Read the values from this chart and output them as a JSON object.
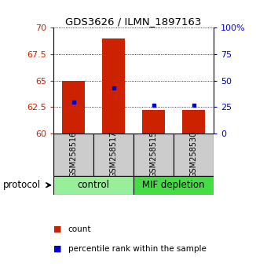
{
  "title": "GDS3626 / ILMN_1897163",
  "samples": [
    "GSM258516",
    "GSM258517",
    "GSM258515",
    "GSM258530"
  ],
  "bar_bottoms": [
    60,
    60,
    60,
    60
  ],
  "bar_tops": [
    65.0,
    69.0,
    62.2,
    62.2
  ],
  "percentile_vals": [
    30,
    43,
    27,
    27
  ],
  "ylim": [
    60,
    70
  ],
  "yticks": [
    60,
    62.5,
    65,
    67.5,
    70
  ],
  "right_yticks": [
    0,
    25,
    50,
    75,
    100
  ],
  "right_yticklabels": [
    "0",
    "25",
    "50",
    "75",
    "100%"
  ],
  "bar_color": "#cc2200",
  "dot_color": "#0000cc",
  "control_color": "#99ee99",
  "mif_color": "#44dd44",
  "bar_width": 0.55,
  "protocol_label": "protocol",
  "legend_count_label": "count",
  "legend_pct_label": "percentile rank within the sample",
  "background_color": "#ffffff",
  "plot_bg_color": "#ffffff",
  "grid_color": "#000000",
  "tick_color_left": "#cc2200",
  "tick_color_right": "#0000cc",
  "sample_box_color": "#cccccc",
  "title_fontsize": 9.5,
  "tick_fontsize": 8,
  "sample_fontsize": 7,
  "group_fontsize": 8.5,
  "legend_fontsize": 7.5
}
